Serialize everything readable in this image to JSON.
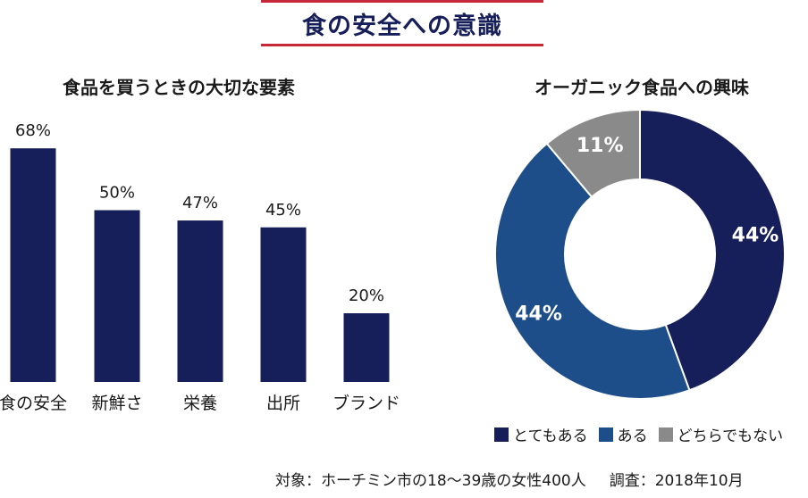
{
  "banner": {
    "title": "食の安全への意識"
  },
  "note": {
    "subject": "対象：ホーチミン市の18〜39歳の女性400人",
    "date": "調査：2018年10月"
  },
  "colors": {
    "dark_navy": "#161f5a",
    "mid_blue": "#1d4e89",
    "gray": "#8a8a8a",
    "red": "#c6283a"
  },
  "chart_data": [
    {
      "type": "bar",
      "title": "食品を買うときの大切な要素",
      "categories": [
        "食の安全",
        "新鮮さ",
        "栄養",
        "出所",
        "ブランド"
      ],
      "values": [
        68,
        50,
        47,
        45,
        20
      ],
      "value_labels": [
        "68%",
        "50%",
        "47%",
        "45%",
        "20%"
      ],
      "ylim": [
        0,
        100
      ],
      "grid": false
    },
    {
      "type": "pie",
      "title": "オーガニック食品への興味",
      "donut": true,
      "slices": [
        {
          "label": "とてもある",
          "value": 44,
          "text": "44%",
          "color": "#161f5a"
        },
        {
          "label": "ある",
          "value": 44,
          "text": "44%",
          "color": "#1d4e89"
        },
        {
          "label": "どちらでもない",
          "value": 11,
          "text": "11%",
          "color": "#8a8a8a"
        }
      ],
      "legend": "bottom"
    }
  ]
}
